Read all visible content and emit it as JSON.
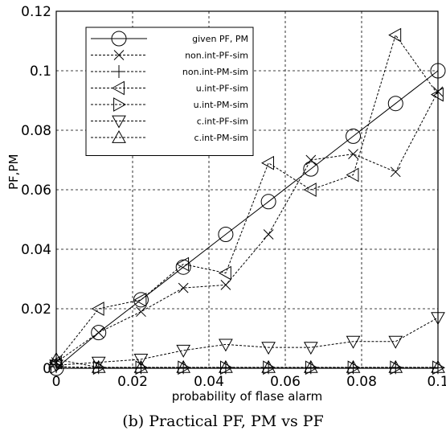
{
  "caption": "(b) Practical PF, PM vs PF",
  "chart_data": {
    "type": "line",
    "xlabel": "probability of flase alarm",
    "ylabel": "PF,PM",
    "xlim": [
      0,
      0.1
    ],
    "ylim": [
      0,
      0.12
    ],
    "x_ticks": [
      "0",
      "0.02",
      "0.04",
      "0.06",
      "0.08",
      "0.1"
    ],
    "y_ticks": [
      "0",
      "0.02",
      "0.04",
      "0.06",
      "0.08",
      "0.1",
      "0.12"
    ],
    "grid": true,
    "legend_position": "top-left",
    "x": [
      0,
      0.0111,
      0.0222,
      0.0333,
      0.0444,
      0.0556,
      0.0667,
      0.0778,
      0.0889,
      0.1
    ],
    "series": [
      {
        "name": "given PF, PM",
        "marker": "circle",
        "line": "solid",
        "values": [
          0,
          0.012,
          0.023,
          0.034,
          0.045,
          0.056,
          0.067,
          0.078,
          0.089,
          0.1
        ]
      },
      {
        "name": "non.int-PF-sim",
        "marker": "x",
        "line": "dashed",
        "values": [
          0.002,
          0.012,
          0.019,
          0.027,
          0.028,
          0.045,
          0.07,
          0.072,
          0.066,
          0.093
        ]
      },
      {
        "name": "non.int-PM-sim",
        "marker": "plus",
        "line": "dashed",
        "values": [
          0.0005,
          0.0002,
          0.0002,
          0.0002,
          0.0002,
          0.0002,
          0.0002,
          0.0002,
          0.0002,
          0.0002
        ]
      },
      {
        "name": "u.int-PF-sim",
        "marker": "triangle-left",
        "line": "dashed",
        "values": [
          0.002,
          0.02,
          0.023,
          0.035,
          0.032,
          0.069,
          0.06,
          0.065,
          0.112,
          0.092
        ]
      },
      {
        "name": "u.int-PM-sim",
        "marker": "triangle-right",
        "line": "dashed",
        "values": [
          0.0005,
          0.0002,
          0.0002,
          0.0002,
          0.0002,
          0.0002,
          0.0002,
          0.0002,
          0.0002,
          0.0002
        ]
      },
      {
        "name": "c.int-PF-sim",
        "marker": "triangle-down",
        "line": "dashed",
        "values": [
          0.001,
          0.002,
          0.003,
          0.006,
          0.008,
          0.007,
          0.007,
          0.009,
          0.009,
          0.017
        ]
      },
      {
        "name": "c.int-PM-sim",
        "marker": "triangle-up",
        "line": "dashed",
        "values": [
          0.003,
          0.0003,
          0.0003,
          0.0003,
          0.0003,
          0.0003,
          0.0003,
          0.0003,
          0.0003,
          0.0003
        ]
      }
    ]
  }
}
